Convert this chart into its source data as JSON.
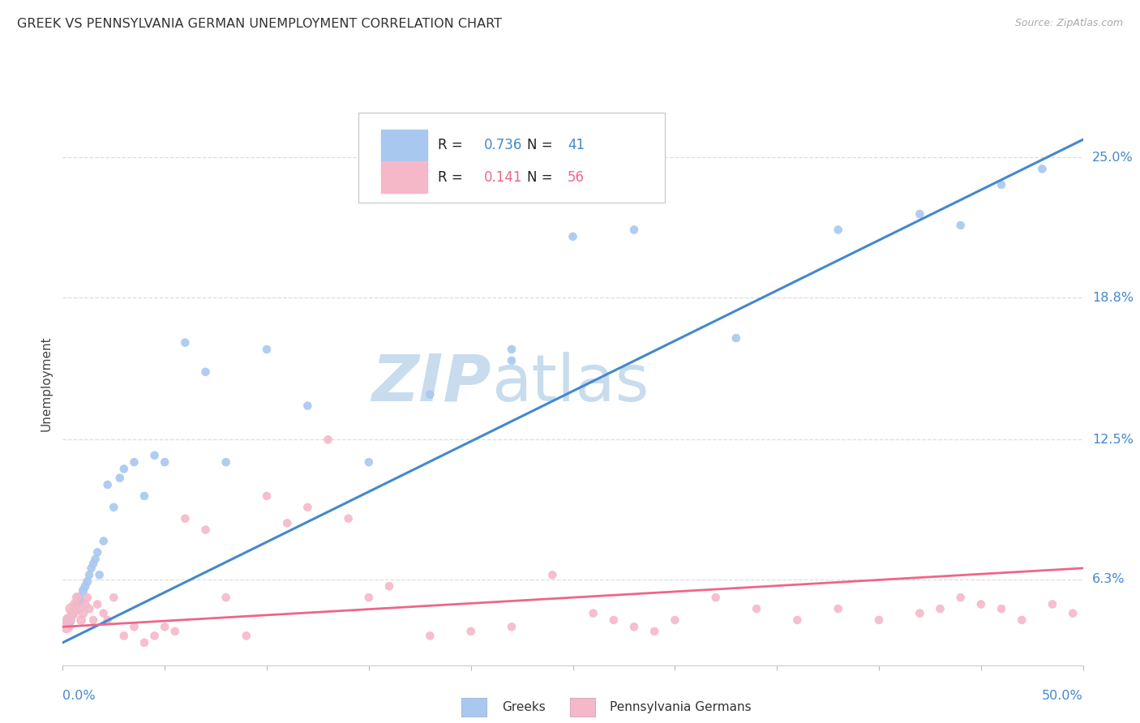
{
  "title": "GREEK VS PENNSYLVANIA GERMAN UNEMPLOYMENT CORRELATION CHART",
  "source": "Source: ZipAtlas.com",
  "ylabel": "Unemployment",
  "xmin": 0.0,
  "xmax": 50.0,
  "ymin": 2.5,
  "ymax": 27.5,
  "yticks": [
    6.3,
    12.5,
    18.8,
    25.0
  ],
  "ytick_labels": [
    "6.3%",
    "12.5%",
    "18.8%",
    "25.0%"
  ],
  "blue_color": "#A8C8F0",
  "pink_color": "#F5B8C8",
  "blue_line_color": "#4488CC",
  "pink_line_color": "#EE6688",
  "blue_scatter_x": [
    0.3,
    0.5,
    0.6,
    0.7,
    0.8,
    0.9,
    1.0,
    1.1,
    1.2,
    1.3,
    1.4,
    1.5,
    1.6,
    1.7,
    1.8,
    2.0,
    2.2,
    2.5,
    2.8,
    3.0,
    3.5,
    4.0,
    4.5,
    5.0,
    6.0,
    7.0,
    8.0,
    10.0,
    12.0,
    15.0,
    18.0,
    22.0,
    25.0,
    28.0,
    33.0,
    38.0,
    42.0,
    44.0,
    46.0,
    48.0,
    22.0
  ],
  "blue_scatter_y": [
    4.5,
    4.8,
    5.0,
    5.2,
    5.5,
    5.3,
    5.8,
    6.0,
    6.2,
    6.5,
    6.8,
    7.0,
    7.2,
    7.5,
    6.5,
    8.0,
    10.5,
    9.5,
    10.8,
    11.2,
    11.5,
    10.0,
    11.8,
    11.5,
    16.8,
    15.5,
    11.5,
    16.5,
    14.0,
    11.5,
    14.5,
    16.0,
    21.5,
    21.8,
    17.0,
    21.8,
    22.5,
    22.0,
    23.8,
    24.5,
    16.5
  ],
  "blue_scatter_s": [
    120,
    80,
    70,
    65,
    65,
    60,
    60,
    55,
    55,
    50,
    50,
    50,
    50,
    50,
    50,
    50,
    50,
    50,
    50,
    50,
    50,
    50,
    50,
    50,
    50,
    50,
    50,
    50,
    50,
    50,
    50,
    50,
    50,
    50,
    50,
    50,
    50,
    50,
    50,
    50,
    50
  ],
  "pink_scatter_x": [
    0.2,
    0.3,
    0.4,
    0.5,
    0.6,
    0.7,
    0.8,
    0.9,
    1.0,
    1.1,
    1.2,
    1.3,
    1.5,
    1.7,
    2.0,
    2.2,
    2.5,
    3.0,
    3.5,
    4.0,
    4.5,
    5.0,
    5.5,
    6.0,
    7.0,
    8.0,
    9.0,
    10.0,
    11.0,
    12.0,
    13.0,
    14.0,
    15.0,
    16.0,
    18.0,
    20.0,
    22.0,
    24.0,
    26.0,
    27.0,
    28.0,
    29.0,
    30.0,
    32.0,
    34.0,
    36.0,
    38.0,
    40.0,
    42.0,
    43.0,
    44.0,
    45.0,
    46.0,
    47.0,
    48.5,
    49.5
  ],
  "pink_scatter_y": [
    4.2,
    4.5,
    5.0,
    4.8,
    5.2,
    5.5,
    5.0,
    4.5,
    4.8,
    5.2,
    5.5,
    5.0,
    4.5,
    5.2,
    4.8,
    4.5,
    5.5,
    3.8,
    4.2,
    3.5,
    3.8,
    4.2,
    4.0,
    9.0,
    8.5,
    5.5,
    3.8,
    10.0,
    8.8,
    9.5,
    12.5,
    9.0,
    5.5,
    6.0,
    3.8,
    4.0,
    4.2,
    6.5,
    4.8,
    4.5,
    4.2,
    4.0,
    4.5,
    5.5,
    5.0,
    4.5,
    5.0,
    4.5,
    4.8,
    5.0,
    5.5,
    5.2,
    5.0,
    4.5,
    5.2,
    4.8
  ],
  "pink_scatter_s": [
    120,
    100,
    90,
    80,
    75,
    70,
    70,
    65,
    65,
    60,
    55,
    55,
    50,
    50,
    50,
    50,
    50,
    50,
    50,
    50,
    50,
    50,
    50,
    50,
    50,
    50,
    50,
    50,
    50,
    50,
    50,
    50,
    50,
    50,
    50,
    50,
    50,
    50,
    50,
    50,
    50,
    50,
    50,
    50,
    50,
    50,
    50,
    50,
    50,
    50,
    50,
    50,
    50,
    50,
    50,
    50
  ],
  "blue_trend_x": [
    0.0,
    50.0
  ],
  "blue_trend_y": [
    3.5,
    25.8
  ],
  "pink_trend_x": [
    0.0,
    50.0
  ],
  "pink_trend_y": [
    4.2,
    6.8
  ],
  "watermark_zip": "ZIP",
  "watermark_atlas": "atlas",
  "watermark_color": "#C8DCEE",
  "background_color": "#FFFFFF",
  "grid_color": "#DDDDDD",
  "legend_r1": "R = 0.736",
  "legend_n1": "N =  41",
  "legend_r2": "R =  0.141",
  "legend_n2": "N =  56"
}
